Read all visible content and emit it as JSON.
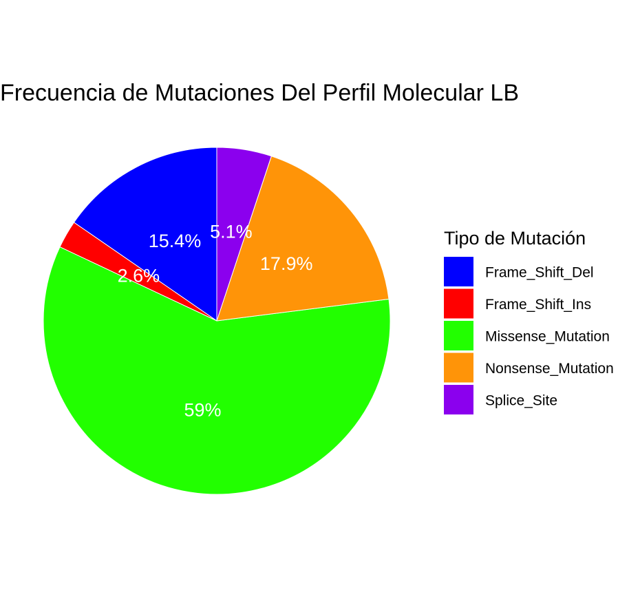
{
  "chart_data": {
    "type": "pie",
    "title": "Frecuencia de Mutaciones Del Perfil Molecular LB",
    "legend_title": "Tipo de Mutación",
    "legend_position": "right",
    "slices": [
      {
        "name": "Frame_Shift_Del",
        "value": 15.4,
        "label": "15.4%",
        "color": "#0000ff"
      },
      {
        "name": "Frame_Shift_Ins",
        "value": 2.6,
        "label": "2.6%",
        "color": "#ff0000"
      },
      {
        "name": "Missense_Mutation",
        "value": 59,
        "label": "59%",
        "color": "#22ff00"
      },
      {
        "name": "Nonsense_Mutation",
        "value": 17.9,
        "label": "17.9%",
        "color": "#ff9408"
      },
      {
        "name": "Splice_Site",
        "value": 5.1,
        "label": "5.1%",
        "color": "#8b00ee"
      }
    ]
  }
}
